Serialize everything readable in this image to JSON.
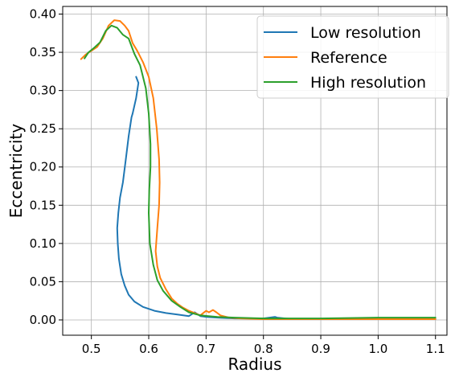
{
  "chart_data": {
    "type": "line",
    "title": "",
    "xlabel": "Radius",
    "ylabel": "Eccentricity",
    "xlim": [
      0.45,
      1.12
    ],
    "ylim": [
      -0.02,
      0.41
    ],
    "xticks": [
      0.5,
      0.6,
      0.7,
      0.8,
      0.9,
      1.0,
      1.1
    ],
    "xtick_labels": [
      "0.5",
      "0.6",
      "0.7",
      "0.8",
      "0.9",
      "1.0",
      "1.1"
    ],
    "yticks": [
      0.0,
      0.05,
      0.1,
      0.15,
      0.2,
      0.25,
      0.3,
      0.35,
      0.4
    ],
    "ytick_labels": [
      "0.00",
      "0.05",
      "0.10",
      "0.15",
      "0.20",
      "0.25",
      "0.30",
      "0.35",
      "0.40"
    ],
    "grid": true,
    "legend_position": "top-right",
    "series": [
      {
        "name": "Low resolution",
        "color": "#1f77b4",
        "x": [
          0.578,
          0.582,
          0.578,
          0.572,
          0.57,
          0.565,
          0.56,
          0.555,
          0.55,
          0.547,
          0.545,
          0.546,
          0.548,
          0.552,
          0.558,
          0.565,
          0.575,
          0.59,
          0.61,
          0.63,
          0.65,
          0.67,
          0.68,
          0.69,
          0.7,
          0.72,
          0.75,
          0.8,
          0.82,
          0.824,
          0.85,
          0.9,
          1.0,
          1.1
        ],
        "y": [
          0.318,
          0.31,
          0.29,
          0.27,
          0.265,
          0.24,
          0.21,
          0.18,
          0.16,
          0.14,
          0.12,
          0.1,
          0.08,
          0.06,
          0.045,
          0.033,
          0.024,
          0.017,
          0.012,
          0.009,
          0.007,
          0.005,
          0.01,
          0.005,
          0.004,
          0.003,
          0.002,
          0.002,
          0.004,
          0.003,
          0.001,
          0.001,
          0.001,
          0.001
        ]
      },
      {
        "name": "Reference",
        "color": "#ff7f0e",
        "x": [
          0.482,
          0.49,
          0.5,
          0.51,
          0.52,
          0.53,
          0.54,
          0.55,
          0.558,
          0.565,
          0.572,
          0.58,
          0.59,
          0.6,
          0.608,
          0.614,
          0.618,
          0.619,
          0.618,
          0.615,
          0.612,
          0.615,
          0.62,
          0.63,
          0.64,
          0.65,
          0.66,
          0.67,
          0.68,
          0.69,
          0.7,
          0.705,
          0.712,
          0.718,
          0.725,
          0.74,
          0.76,
          0.8,
          0.9,
          1.0,
          1.1
        ],
        "y": [
          0.341,
          0.347,
          0.352,
          0.357,
          0.368,
          0.385,
          0.392,
          0.391,
          0.385,
          0.378,
          0.362,
          0.352,
          0.337,
          0.318,
          0.29,
          0.25,
          0.21,
          0.18,
          0.15,
          0.12,
          0.09,
          0.07,
          0.055,
          0.04,
          0.028,
          0.021,
          0.016,
          0.012,
          0.009,
          0.006,
          0.012,
          0.01,
          0.013,
          0.01,
          0.006,
          0.003,
          0.002,
          0.001,
          0.001,
          0.001,
          0.001
        ]
      },
      {
        "name": "High resolution",
        "color": "#2ca02c",
        "x": [
          0.488,
          0.495,
          0.505,
          0.515,
          0.525,
          0.535,
          0.545,
          0.555,
          0.565,
          0.575,
          0.585,
          0.595,
          0.6,
          0.603,
          0.603,
          0.601,
          0.6,
          0.602,
          0.608,
          0.615,
          0.625,
          0.64,
          0.655,
          0.67,
          0.69,
          0.72,
          0.75,
          0.8,
          0.9,
          1.0,
          1.1
        ],
        "y": [
          0.342,
          0.35,
          0.356,
          0.363,
          0.378,
          0.385,
          0.382,
          0.373,
          0.368,
          0.348,
          0.333,
          0.303,
          0.27,
          0.23,
          0.2,
          0.17,
          0.14,
          0.1,
          0.072,
          0.052,
          0.038,
          0.025,
          0.017,
          0.01,
          0.006,
          0.004,
          0.003,
          0.002,
          0.002,
          0.003,
          0.003
        ]
      }
    ]
  }
}
